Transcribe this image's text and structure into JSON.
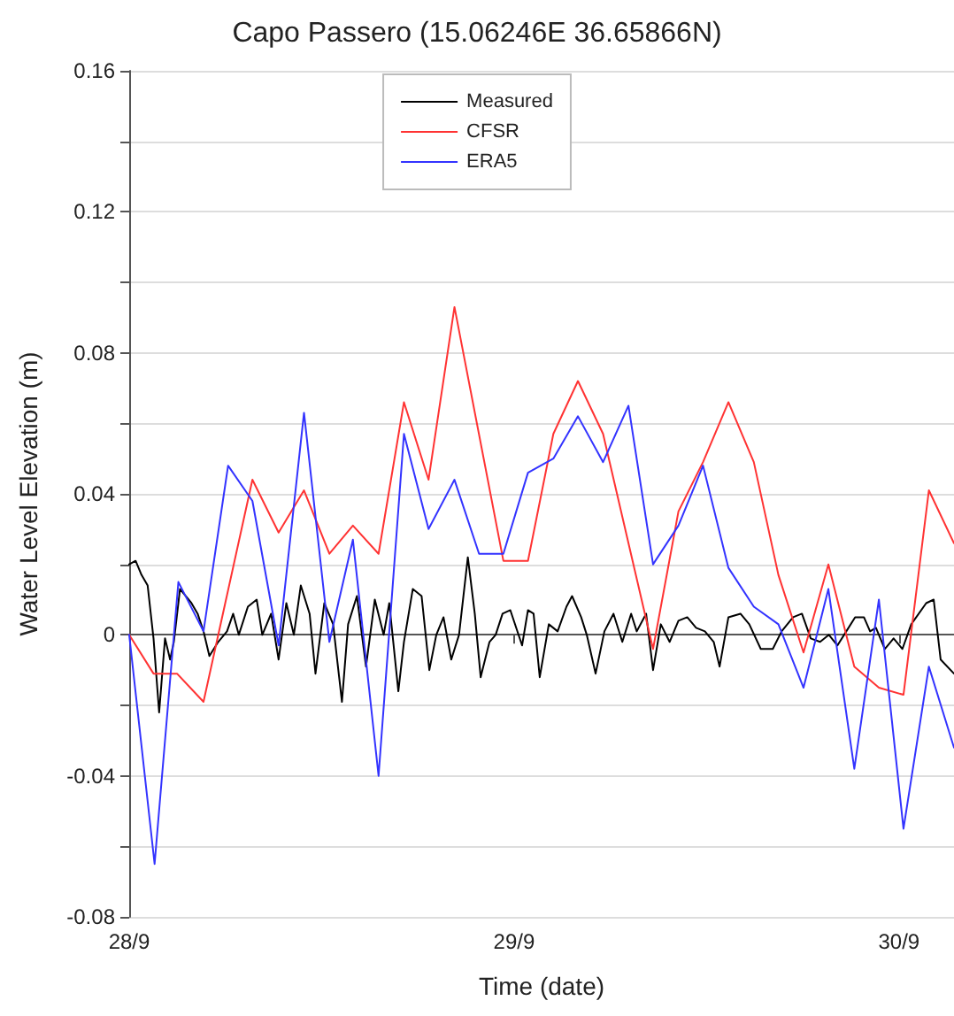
{
  "chart_data": {
    "type": "line",
    "title": "Capo Passero (15.06246E 36.65866N)",
    "xlabel": "Time (date)",
    "ylabel": "Water Level Elevation (m)",
    "xlim": [
      "--09-28T00:00",
      "--09-30T03:26"
    ],
    "xticks": [
      {
        "value": "--09-28",
        "label": "28/9"
      },
      {
        "value": "--09-29",
        "label": "29/9"
      },
      {
        "value": "--09-30",
        "label": "30/9"
      }
    ],
    "ylim": [
      -0.08,
      0.16
    ],
    "yticks": [
      -0.08,
      {
        "value": -0.06,
        "label": null
      },
      -0.04,
      {
        "value": -0.02,
        "label": null
      },
      0,
      {
        "value": 0.02,
        "label": null
      },
      0.04,
      {
        "value": 0.06,
        "label": null
      },
      0.08,
      {
        "value": 0.1,
        "label": null
      },
      0.12,
      {
        "value": 0.14,
        "label": null
      },
      0.16
    ],
    "grid": "y",
    "legend": "top",
    "marker": "none",
    "line_style": "solid",
    "series": [
      {
        "name": "Measured",
        "color": "#000000",
        "x": [
          "--09-28T00:00",
          "--09-28T00:24",
          "--09-28T00:46",
          "--09-28T01:09",
          "--09-28T01:31",
          "--09-28T01:52",
          "--09-28T02:14",
          "--09-28T02:33",
          "--09-28T02:47",
          "--09-28T03:10",
          "--09-28T03:32",
          "--09-28T03:53",
          "--09-28T04:16",
          "--09-28T04:38",
          "--09-28T05:00",
          "--09-28T05:33",
          "--09-28T06:06",
          "--09-28T06:29",
          "--09-28T06:50",
          "--09-28T07:24",
          "--09-28T07:57",
          "--09-28T08:18",
          "--09-28T08:51",
          "--09-28T09:19",
          "--09-28T09:48",
          "--09-28T10:16",
          "--09-28T10:42",
          "--09-28T11:15",
          "--09-28T11:37",
          "--09-28T12:10",
          "--09-28T12:43",
          "--09-28T13:16",
          "--09-28T13:39",
          "--09-28T14:12",
          "--09-28T14:46",
          "--09-28T15:19",
          "--09-28T15:52",
          "--09-28T16:13",
          "--09-28T16:47",
          "--09-28T17:08",
          "--09-28T17:41",
          "--09-28T18:14",
          "--09-28T18:43",
          "--09-28T19:09",
          "--09-28T19:36",
          "--09-28T20:05",
          "--09-28T20:34",
          "--09-28T21:07",
          "--09-28T21:33",
          "--09-28T21:55",
          "--09-28T22:28",
          "--09-28T22:51",
          "--09-28T23:17",
          "--09-28T23:46",
          "--09-29T00:30",
          "--09-29T00:52",
          "--09-29T01:13",
          "--09-29T01:36",
          "--09-29T02:10",
          "--09-29T02:43",
          "--09-29T03:16",
          "--09-29T03:37",
          "--09-29T04:11",
          "--09-29T04:32",
          "--09-29T05:05",
          "--09-29T05:38",
          "--09-29T06:12",
          "--09-29T06:45",
          "--09-29T07:18",
          "--09-29T07:39",
          "--09-29T08:14",
          "--09-29T08:40",
          "--09-29T09:09",
          "--09-29T09:42",
          "--09-29T10:15",
          "--09-29T10:48",
          "--09-29T11:21",
          "--09-29T11:54",
          "--09-29T12:27",
          "--09-29T12:49",
          "--09-29T13:22",
          "--09-29T14:07",
          "--09-29T14:40",
          "--09-29T15:23",
          "--09-29T16:08",
          "--09-29T16:41",
          "--09-29T17:24",
          "--09-29T17:57",
          "--09-29T18:30",
          "--09-29T19:05",
          "--09-29T19:38",
          "--09-29T20:10",
          "--09-29T20:43",
          "--09-29T21:16",
          "--09-29T21:49",
          "--09-29T22:12",
          "--09-29T22:34",
          "--09-29T23:07",
          "--09-29T23:40",
          "--09-30T00:13",
          "--09-30T00:46",
          "--09-30T01:42",
          "--09-30T02:10",
          "--09-30T02:36",
          "--09-30T03:26"
        ],
        "values": [
          0.02,
          0.021,
          0.017,
          0.014,
          -0.001,
          -0.022,
          -0.001,
          -0.007,
          -0.002,
          0.013,
          0.011,
          0.009,
          0.006,
          0.001,
          -0.006,
          -0.002,
          0.001,
          0.006,
          0,
          0.008,
          0.01,
          0,
          0.006,
          -0.007,
          0.009,
          0,
          0.014,
          0.006,
          -0.011,
          0.009,
          0.003,
          -0.019,
          0.003,
          0.011,
          -0.009,
          0.01,
          0,
          0.009,
          -0.016,
          -0.002,
          0.013,
          0.011,
          -0.01,
          0,
          0.005,
          -0.007,
          0,
          0.022,
          0.006,
          -0.012,
          -0.002,
          0,
          0.006,
          0.007,
          -0.003,
          0.007,
          0.006,
          -0.012,
          0.003,
          0.001,
          0.008,
          0.011,
          0.005,
          0,
          -0.011,
          0.001,
          0.006,
          -0.002,
          0.006,
          0.001,
          0.006,
          -0.01,
          0.003,
          -0.002,
          0.004,
          0.005,
          0.002,
          0.001,
          -0.002,
          -0.009,
          0.005,
          0.006,
          0.003,
          -0.004,
          -0.004,
          0.001,
          0.005,
          0.006,
          -0.001,
          -0.002,
          0,
          -0.003,
          0.001,
          0.005,
          0.005,
          0.001,
          0.002,
          -0.004,
          -0.001,
          -0.004,
          0.003,
          0.009,
          0.01,
          -0.007,
          -0.011
        ]
      },
      {
        "name": "CFSR",
        "color": "#ff3333",
        "x": [
          "--09-28T00:00",
          "--09-28T01:31",
          "--09-28T02:59",
          "--09-28T04:38",
          "--09-28T07:41",
          "--09-28T09:19",
          "--09-28T10:54",
          "--09-28T12:29",
          "--09-28T13:57",
          "--09-28T15:33",
          "--09-28T17:08",
          "--09-28T18:40",
          "--09-28T20:17",
          "--09-28T23:20",
          "--09-29T00:52",
          "--09-29T02:27",
          "--09-29T03:59",
          "--09-29T05:33",
          "--09-29T08:40",
          "--09-29T10:15",
          "--09-29T11:47",
          "--09-29T13:22",
          "--09-29T14:57",
          "--09-29T16:29",
          "--09-29T18:03",
          "--09-29T19:36",
          "--09-29T21:13",
          "--09-29T22:45",
          "--09-30T00:17",
          "--09-30T01:52",
          "--09-30T03:26"
        ],
        "values": [
          0,
          -0.011,
          -0.011,
          -0.019,
          0.044,
          0.029,
          0.041,
          0.023,
          0.031,
          0.023,
          0.066,
          0.044,
          0.093,
          0.021,
          0.021,
          0.057,
          0.072,
          0.057,
          -0.004,
          0.035,
          0.049,
          0.066,
          0.049,
          0.017,
          -0.005,
          0.02,
          -0.009,
          -0.015,
          -0.017,
          0.041,
          0.026
        ]
      },
      {
        "name": "ERA5",
        "color": "#3333ff",
        "x": [
          "--09-28T00:00",
          "--09-28T01:35",
          "--09-28T03:04",
          "--09-28T04:38",
          "--09-28T06:10",
          "--09-28T07:41",
          "--09-28T09:19",
          "--09-28T10:54",
          "--09-28T12:29",
          "--09-28T13:57",
          "--09-28T15:33",
          "--09-28T17:08",
          "--09-28T18:40",
          "--09-28T20:17",
          "--09-28T21:49",
          "--09-28T23:20",
          "--09-29T00:52",
          "--09-29T02:27",
          "--09-29T03:59",
          "--09-29T05:33",
          "--09-29T07:08",
          "--09-29T08:40",
          "--09-29T10:15",
          "--09-29T11:47",
          "--09-29T13:22",
          "--09-29T14:57",
          "--09-29T16:29",
          "--09-29T18:03",
          "--09-29T19:36",
          "--09-29T21:13",
          "--09-29T22:45",
          "--09-30T00:17",
          "--09-30T01:52",
          "--09-30T03:26"
        ],
        "values": [
          0,
          -0.065,
          0.015,
          0.001,
          0.048,
          0.038,
          -0.003,
          0.063,
          -0.002,
          0.027,
          -0.04,
          0.057,
          0.03,
          0.044,
          0.023,
          0.023,
          0.046,
          0.05,
          0.062,
          0.049,
          0.065,
          0.02,
          0.031,
          0.048,
          0.019,
          0.008,
          0.003,
          -0.015,
          0.013,
          -0.038,
          0.01,
          -0.055,
          -0.009,
          -0.032
        ]
      }
    ]
  }
}
